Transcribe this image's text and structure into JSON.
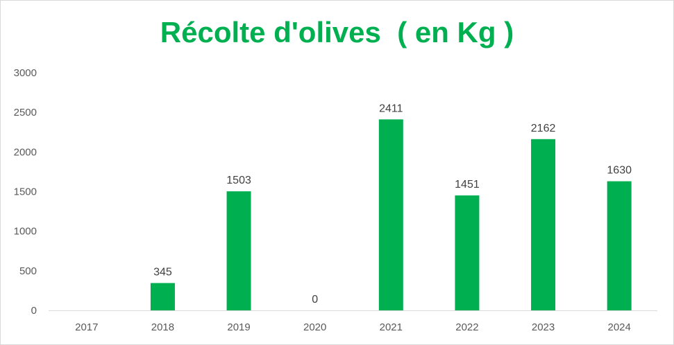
{
  "chart_data": {
    "type": "bar",
    "title": "Récolte d'olives  ( en Kg )",
    "categories": [
      "2017",
      "2018",
      "2019",
      "2020",
      "2021",
      "2022",
      "2023",
      "2024"
    ],
    "values": [
      null,
      345,
      1503,
      0,
      2411,
      1451,
      2162,
      1630
    ],
    "data_labels": [
      "",
      "345",
      "1503",
      "0",
      "2411",
      "1451",
      "2162",
      "1630"
    ],
    "y_ticks": [
      "0",
      "500",
      "1000",
      "1500",
      "2000",
      "2500",
      "3000"
    ],
    "ylim": [
      0,
      3000
    ],
    "grid": false,
    "legend": "none",
    "xlabel": "",
    "ylabel": "",
    "colors": {
      "bar": "#00b050",
      "title": "#00b050",
      "axis_line": "#d9d9d9"
    }
  }
}
